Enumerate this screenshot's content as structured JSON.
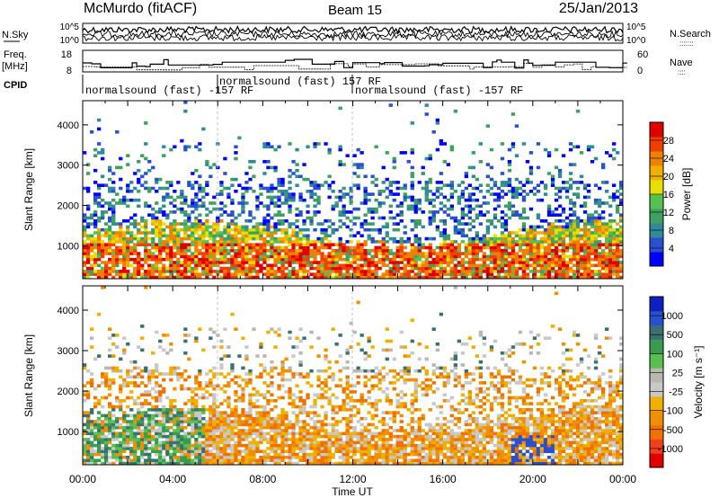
{
  "header": {
    "station": "McMurdo (fitACF)",
    "beam": "Beam 15",
    "date": "25/Jan/2013"
  },
  "noise_panel": {
    "left_label": "N.Sky",
    "right_label": "N.Search",
    "right_label_dots": ":::::::",
    "ticks_left": [
      "10^5",
      "10^0"
    ],
    "ticks_right": [
      "10^5",
      "10^0"
    ]
  },
  "freq_panel": {
    "left_label_1": "Freq.",
    "left_label_2": "[MHz]",
    "right_label": "Nave",
    "right_label_dots": "::::",
    "ticks_left": [
      "18",
      "8"
    ],
    "ticks_right": [
      "60",
      "0"
    ]
  },
  "cpid": {
    "label": "CPID",
    "segments": [
      {
        "start_hour": 0.0,
        "text": "normalsound (fast) -157 RF"
      },
      {
        "start_hour": 6.0,
        "text": "normalsound (fast) 157 RF"
      },
      {
        "start_hour": 12.0,
        "text": "normalsound (fast) -157 RF"
      }
    ]
  },
  "chart_data": [
    {
      "type": "heatmap",
      "name": "power",
      "ylabel": "Slant Range [km]",
      "ylim": [
        180,
        4600
      ],
      "yticks": [
        1000,
        2000,
        3000,
        4000
      ],
      "xlim": [
        0,
        24
      ],
      "colorbar": {
        "label": "Power [dB]",
        "ticks": [
          "28",
          "24",
          "20",
          "16",
          "12",
          "8",
          "4"
        ],
        "colors": [
          "#0000ff",
          "#2a4fd0",
          "#2f8a9a",
          "#3fa060",
          "#58c050",
          "#e6e000",
          "#f0b000",
          "#f08000",
          "#f04000",
          "#e00000"
        ]
      }
    },
    {
      "type": "heatmap",
      "name": "velocity",
      "ylabel": "Slant Range [km]",
      "ylim": [
        180,
        4600
      ],
      "yticks": [
        1000,
        2000,
        3000,
        4000
      ],
      "xlim": [
        0,
        24
      ],
      "xticks": [
        "00:00",
        "04:00",
        "08:00",
        "12:00",
        "16:00",
        "20:00",
        "00:00"
      ],
      "xlabel": "Time UT",
      "colorbar": {
        "label": "Velocity [m s⁻¹]",
        "ticks": [
          "1000",
          "500",
          "100",
          "25",
          "-25",
          "-100",
          "-500",
          "-1000"
        ],
        "colors": [
          "#e00000",
          "#f04020",
          "#f07000",
          "#f09000",
          "#f0b000",
          "#c8c8c8",
          "#b8b8b0",
          "#58c050",
          "#3a9a50",
          "#3a7070",
          "#2a4fd0",
          "#1020c0"
        ]
      }
    }
  ]
}
